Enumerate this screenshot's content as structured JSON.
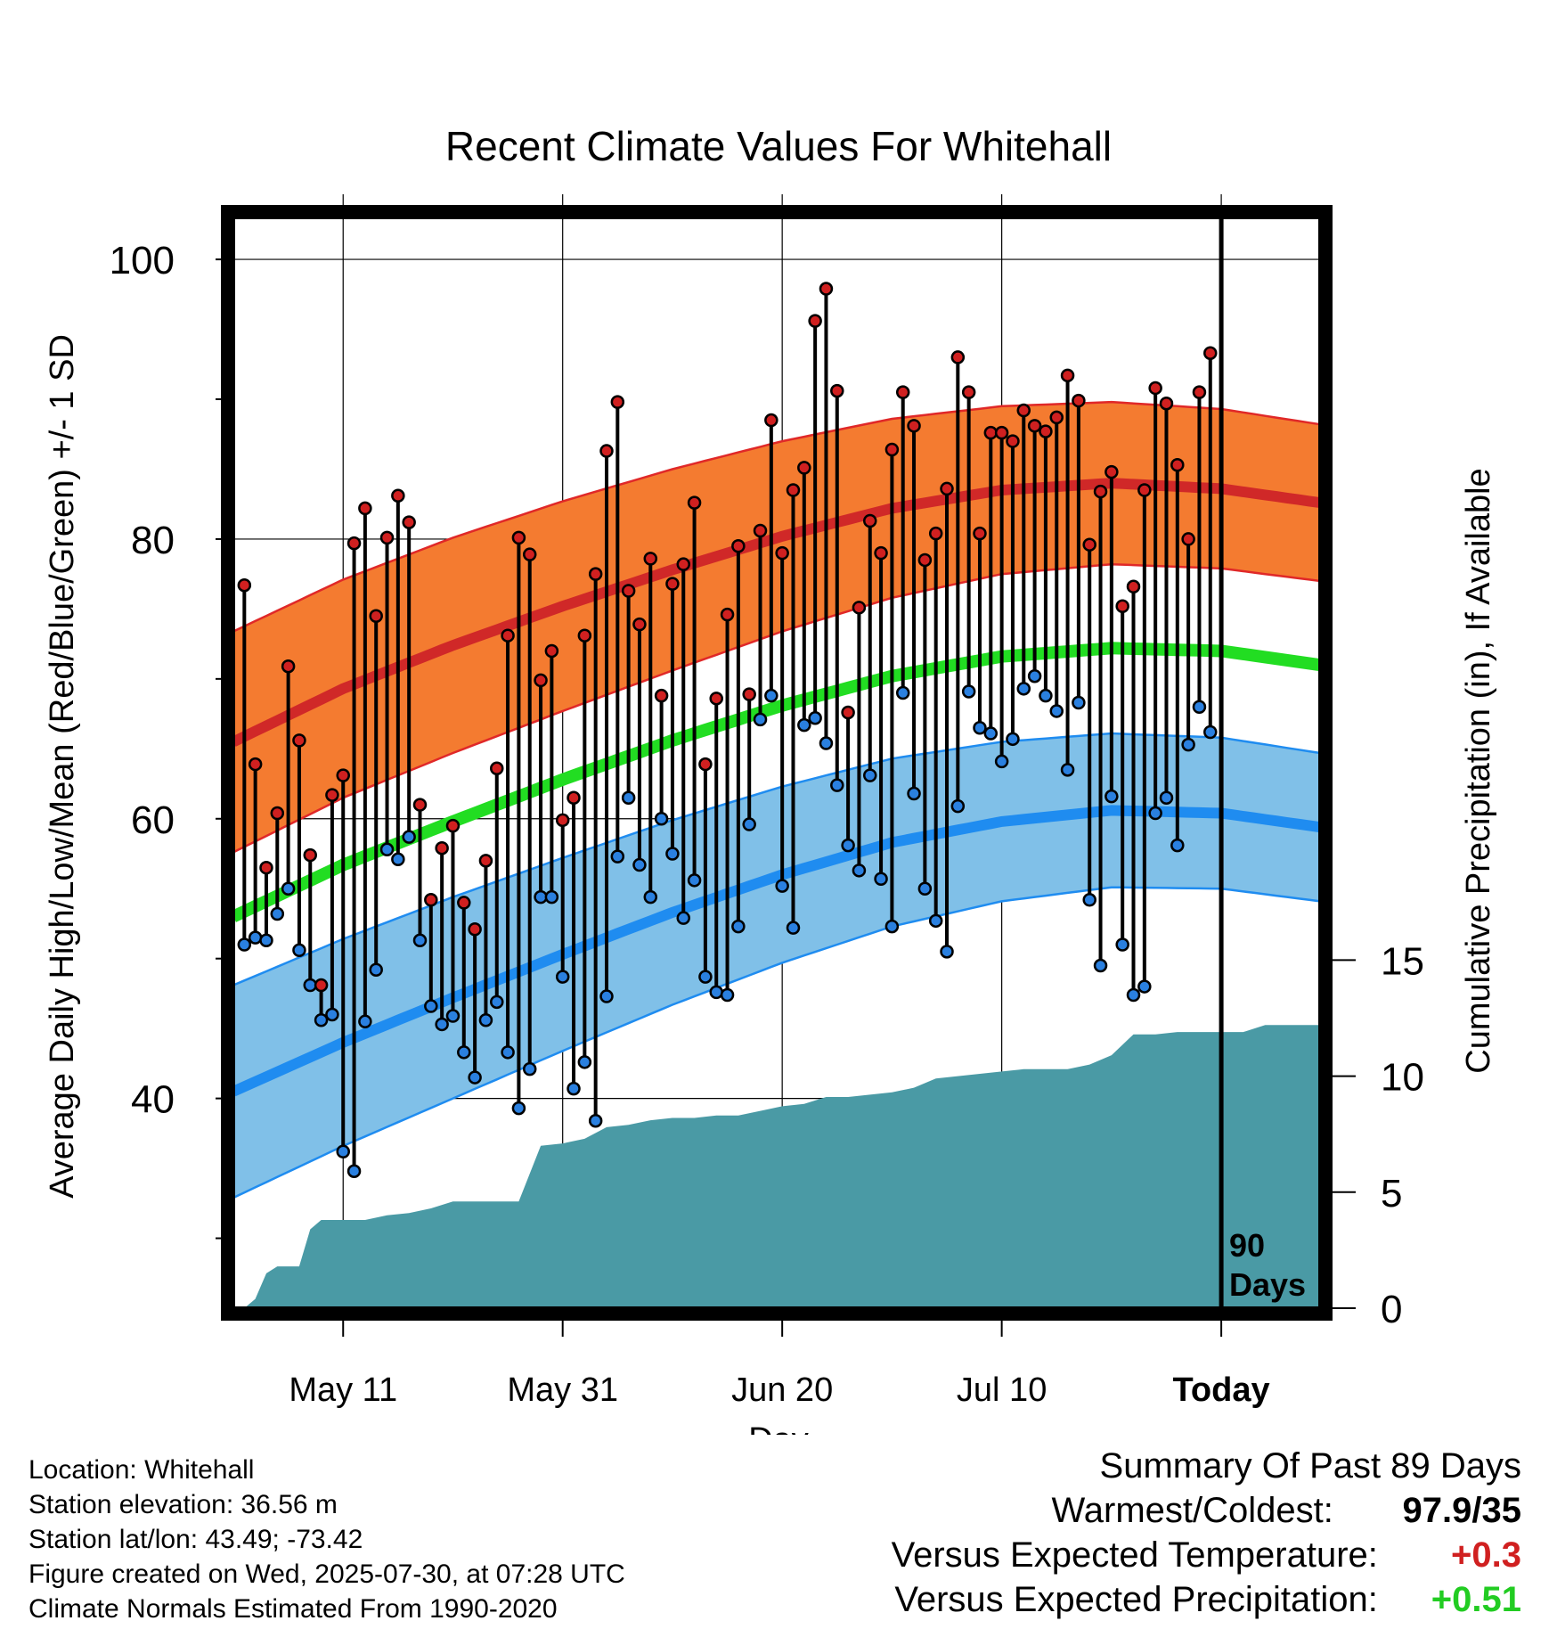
{
  "chart_data": {
    "type": "line",
    "title": "Recent Climate Values For Whitehall",
    "xlabel": "Day",
    "ylabel": "Average Daily High/Low/Mean (Red/Blue/Green) +/- 1 SD",
    "y2label": "Cumulative Precipitation (in), If Available",
    "y_ticks": [
      "40",
      "60",
      "80",
      "100"
    ],
    "y2_ticks": [
      "0",
      "5",
      "10",
      "15"
    ],
    "x_ticks": [
      "May 11",
      "May 31",
      "Jun 20",
      "Jul 10",
      "Today"
    ],
    "ylim": [
      25,
      103
    ],
    "y2lim": [
      0,
      47
    ],
    "xlim": [
      -10,
      89
    ],
    "today_label": "90 Days",
    "colors": {
      "high_band": "#f47b30",
      "high_mean": "#d02828",
      "low_band": "#80c0e8",
      "low_mean": "#1f8cf0",
      "mean": "#22dd22",
      "precip": "#4a9aa5",
      "high_dot": "#d02020",
      "low_dot": "#2a80e0"
    },
    "series": [
      {
        "name": "High",
        "values": [
          76.7,
          63.9,
          56.5,
          60.4,
          70.9,
          65.6,
          57.4,
          48.1,
          61.7,
          63.1,
          79.7,
          82.2,
          74.5,
          80.1,
          83.1,
          81.2,
          61.0,
          54.2,
          57.9,
          59.5,
          54.0,
          52.1,
          57.0,
          63.6,
          73.1,
          80.1,
          78.9,
          69.9,
          72.0,
          59.9,
          61.5,
          73.1,
          77.5,
          86.3,
          89.8,
          76.3,
          73.9,
          78.6,
          68.8,
          76.8,
          78.2,
          82.6,
          63.9,
          68.6,
          74.6,
          79.5,
          68.9,
          80.6,
          88.5,
          79.0,
          83.5,
          85.1,
          95.6,
          97.9,
          90.6,
          67.6,
          75.1,
          81.3,
          79.0,
          86.4,
          90.5,
          88.1,
          78.5,
          80.4,
          83.6,
          93.0,
          90.5,
          80.4,
          87.6,
          87.6,
          87.0,
          89.2,
          88.1,
          87.7,
          88.7,
          91.7,
          89.9,
          79.6,
          83.4,
          84.8,
          75.2,
          76.6,
          83.5,
          90.8,
          89.7,
          85.3,
          80.0,
          90.5,
          93.3
        ]
      },
      {
        "name": "Low",
        "values": [
          51.0,
          51.5,
          51.3,
          53.2,
          55.0,
          50.6,
          48.1,
          45.6,
          46.0,
          36.2,
          34.8,
          45.5,
          49.2,
          57.8,
          57.1,
          58.7,
          51.3,
          46.6,
          45.3,
          45.9,
          43.3,
          41.5,
          45.6,
          46.9,
          43.3,
          39.3,
          42.1,
          54.4,
          54.4,
          48.7,
          40.7,
          42.6,
          38.4,
          47.3,
          57.3,
          61.5,
          56.7,
          54.4,
          60.0,
          57.5,
          52.9,
          55.6,
          48.7,
          47.6,
          47.4,
          52.3,
          59.6,
          67.1,
          68.8,
          55.2,
          52.2,
          66.7,
          67.2,
          65.4,
          62.4,
          58.1,
          56.3,
          63.1,
          55.7,
          52.3,
          69.0,
          61.8,
          55.0,
          52.7,
          50.5,
          60.9,
          69.1,
          66.5,
          66.1,
          64.1,
          65.7,
          69.3,
          70.2,
          68.8,
          67.7,
          63.5,
          68.3,
          54.2,
          49.5,
          61.6,
          51.0,
          47.4,
          48.0,
          60.4,
          61.5,
          58.1,
          65.3,
          68.0,
          66.2
        ]
      }
    ],
    "normals": {
      "x": [
        -10,
        0,
        10,
        20,
        30,
        40,
        50,
        60,
        70,
        80,
        89
      ],
      "high_mean": [
        65.5,
        69.3,
        72.4,
        75.2,
        77.8,
        80.2,
        82.2,
        83.5,
        84.0,
        83.6,
        82.6
      ],
      "high_sd": [
        7.9,
        7.8,
        7.7,
        7.5,
        7.2,
        6.8,
        6.4,
        6.0,
        5.8,
        5.7,
        5.6
      ],
      "low_mean": [
        40.5,
        44.0,
        47.2,
        50.3,
        53.3,
        56.0,
        58.3,
        59.8,
        60.6,
        60.4,
        59.4
      ],
      "low_sd": [
        7.6,
        7.4,
        7.2,
        6.9,
        6.6,
        6.3,
        6.0,
        5.7,
        5.5,
        5.4,
        5.3
      ],
      "mean": [
        53.0,
        56.7,
        59.8,
        62.8,
        65.6,
        68.1,
        70.2,
        71.6,
        72.2,
        72.0,
        71.0
      ]
    },
    "precip": {
      "x": [
        -9,
        -8,
        -7,
        -6,
        -5,
        -4,
        -3,
        -2,
        0,
        2,
        4,
        6,
        8,
        10,
        12,
        14,
        16,
        18,
        20,
        22,
        24,
        26,
        28,
        30,
        32,
        34,
        36,
        38,
        40,
        42,
        44,
        46,
        48,
        50,
        52,
        54,
        56,
        58,
        60,
        62,
        64,
        66,
        68,
        70,
        72,
        74,
        76,
        78,
        80,
        82,
        84,
        86,
        88,
        89
      ],
      "values": [
        0.0,
        0.4,
        1.5,
        1.8,
        1.8,
        1.8,
        3.4,
        3.8,
        3.8,
        3.8,
        4.0,
        4.1,
        4.3,
        4.6,
        4.6,
        4.6,
        4.6,
        7.0,
        7.1,
        7.3,
        7.8,
        7.9,
        8.1,
        8.2,
        8.2,
        8.3,
        8.3,
        8.5,
        8.7,
        8.8,
        9.1,
        9.1,
        9.2,
        9.3,
        9.5,
        9.9,
        10.0,
        10.1,
        10.2,
        10.3,
        10.3,
        10.3,
        10.5,
        10.9,
        11.8,
        11.8,
        11.9,
        11.9,
        11.9,
        11.9,
        12.2,
        12.2,
        12.2,
        12.2
      ]
    }
  },
  "footer": {
    "location": "Location: Whitehall",
    "elevation": "Station elevation: 36.56 m",
    "latlon": "Station lat/lon: 43.49; -73.42",
    "created": "Figure created on Wed, 2025-07-30, at 07:28 UTC",
    "normals": "Climate Normals Estimated From 1990-2020"
  },
  "summary": {
    "title": "Summary Of Past 89 Days",
    "warmest_label": "Warmest/Coldest:",
    "warmest_value": "97.9/35",
    "temp_label": "Versus Expected Temperature:",
    "temp_value": "+0.3",
    "precip_label": "Versus Expected Precipitation:",
    "precip_value": "+0.51",
    "temp_color": "#d02020",
    "precip_color": "#22cc22"
  }
}
